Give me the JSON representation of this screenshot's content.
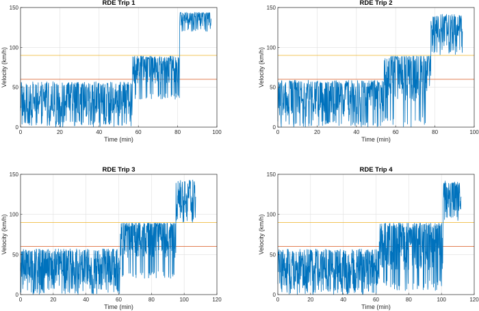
{
  "colors": {
    "series": "#0072BD",
    "threshold_high": "#EDB120",
    "threshold_low": "#D95319"
  },
  "chart_data": [
    {
      "type": "line",
      "title": "RDE Trip 1",
      "xlabel": "Time (min)",
      "ylabel": "Velocity (km/h)",
      "xlim": [
        0,
        100
      ],
      "ylim": [
        0,
        150
      ],
      "xticks": [
        0,
        20,
        40,
        60,
        80,
        100
      ],
      "yticks": [
        0,
        50,
        100,
        150
      ],
      "grid": true,
      "reference_lines": [
        {
          "y": 90,
          "color": "#EDB120"
        },
        {
          "y": 60,
          "color": "#D95319"
        }
      ],
      "segments": [
        {
          "x": [
            0,
            57
          ],
          "min": 0,
          "max": 57,
          "mean": 33
        },
        {
          "x": [
            57,
            81
          ],
          "min": 35,
          "max": 89,
          "mean": 75
        },
        {
          "x": [
            81,
            97
          ],
          "min": 120,
          "max": 144,
          "mean": 136
        }
      ]
    },
    {
      "type": "line",
      "title": "RDE Trip 2",
      "xlabel": "Time (min)",
      "ylabel": "Velocity (km/h)",
      "xlim": [
        0,
        100
      ],
      "ylim": [
        0,
        150
      ],
      "xticks": [
        0,
        20,
        40,
        60,
        80,
        100
      ],
      "yticks": [
        0,
        50,
        100,
        150
      ],
      "grid": true,
      "reference_lines": [
        {
          "y": 90,
          "color": "#EDB120"
        },
        {
          "y": 60,
          "color": "#D95319"
        }
      ],
      "segments": [
        {
          "x": [
            0,
            54
          ],
          "min": 0,
          "max": 59,
          "mean": 35
        },
        {
          "x": [
            54,
            78
          ],
          "min": 0,
          "max": 89,
          "mean": 65
        },
        {
          "x": [
            78,
            94
          ],
          "min": 90,
          "max": 142,
          "mean": 120
        }
      ]
    },
    {
      "type": "line",
      "title": "RDE Trip 3",
      "xlabel": "Time (min)",
      "ylabel": "Velocity (km/h)",
      "xlim": [
        0,
        120
      ],
      "ylim": [
        0,
        150
      ],
      "xticks": [
        0,
        20,
        40,
        60,
        80,
        100,
        120
      ],
      "yticks": [
        0,
        50,
        100,
        150
      ],
      "grid": true,
      "reference_lines": [
        {
          "y": 90,
          "color": "#EDB120"
        },
        {
          "y": 60,
          "color": "#D95319"
        }
      ],
      "segments": [
        {
          "x": [
            0,
            61
          ],
          "min": 0,
          "max": 57,
          "mean": 32
        },
        {
          "x": [
            61,
            95
          ],
          "min": 20,
          "max": 89,
          "mean": 72
        },
        {
          "x": [
            95,
            107
          ],
          "min": 90,
          "max": 143,
          "mean": 122
        }
      ]
    },
    {
      "type": "line",
      "title": "RDE Trip 4",
      "xlabel": "Time (min)",
      "ylabel": "Velocity (km/h)",
      "xlim": [
        0,
        120
      ],
      "ylim": [
        0,
        150
      ],
      "xticks": [
        0,
        20,
        40,
        60,
        80,
        100,
        120
      ],
      "yticks": [
        0,
        50,
        100,
        150
      ],
      "grid": true,
      "reference_lines": [
        {
          "y": 90,
          "color": "#EDB120"
        },
        {
          "y": 60,
          "color": "#D95319"
        }
      ],
      "segments": [
        {
          "x": [
            0,
            62
          ],
          "min": 0,
          "max": 57,
          "mean": 32
        },
        {
          "x": [
            62,
            101
          ],
          "min": 5,
          "max": 89,
          "mean": 62
        },
        {
          "x": [
            101,
            112
          ],
          "min": 92,
          "max": 142,
          "mean": 122
        }
      ]
    }
  ]
}
